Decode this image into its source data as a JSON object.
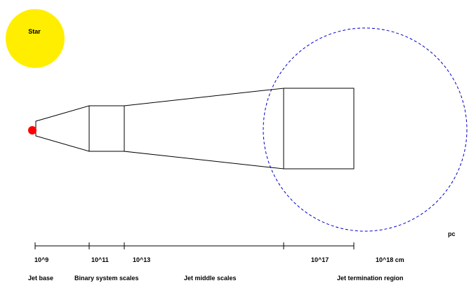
{
  "star": {
    "label": "Star",
    "color": "#ffee00"
  },
  "compact_object": {
    "color": "#ff0000"
  },
  "parsec_circle": {
    "label": "pc",
    "color": "#0000cc",
    "style": "dashed"
  },
  "scale_ticks": [
    "10^9",
    "10^11",
    "10^13",
    "10^17",
    "10^18 cm"
  ],
  "regions": {
    "jet_base": "Jet base",
    "binary_system": "Binary system scales",
    "jet_middle": "Jet middle scales",
    "jet_termination": "Jet termination region"
  },
  "colors": {
    "outline": "#000000",
    "background": "#ffffff"
  }
}
